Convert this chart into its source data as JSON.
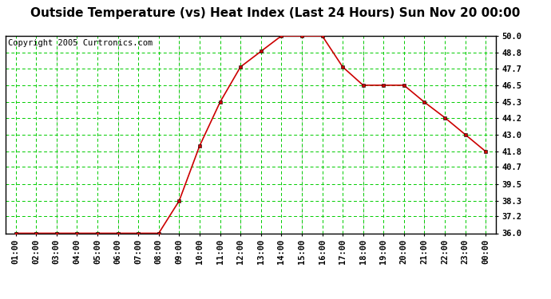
{
  "title": "Outside Temperature (vs) Heat Index (Last 24 Hours) Sun Nov 20 00:00",
  "copyright": "Copyright 2005 Curtronics.com",
  "x_labels": [
    "01:00",
    "02:00",
    "03:00",
    "04:00",
    "05:00",
    "06:00",
    "07:00",
    "08:00",
    "09:00",
    "10:00",
    "11:00",
    "12:00",
    "13:00",
    "14:00",
    "15:00",
    "16:00",
    "17:00",
    "18:00",
    "19:00",
    "20:00",
    "21:00",
    "22:00",
    "23:00",
    "00:00"
  ],
  "y_values": [
    36.0,
    36.0,
    36.0,
    36.0,
    36.0,
    36.0,
    36.0,
    36.0,
    38.3,
    42.2,
    45.3,
    47.8,
    48.9,
    50.0,
    50.0,
    50.0,
    47.8,
    46.5,
    46.5,
    46.5,
    45.3,
    44.2,
    43.0,
    41.8
  ],
  "y_ticks": [
    36.0,
    37.2,
    38.3,
    39.5,
    40.7,
    41.8,
    43.0,
    44.2,
    45.3,
    46.5,
    47.7,
    48.8,
    50.0
  ],
  "y_min": 36.0,
  "y_max": 50.0,
  "line_color": "#cc0000",
  "marker_size": 3.5,
  "bg_color": "#ffffff",
  "grid_green": "#00cc00",
  "grid_gray": "#888888",
  "title_fontsize": 11,
  "copyright_fontsize": 7.5,
  "tick_fontsize": 7.5
}
